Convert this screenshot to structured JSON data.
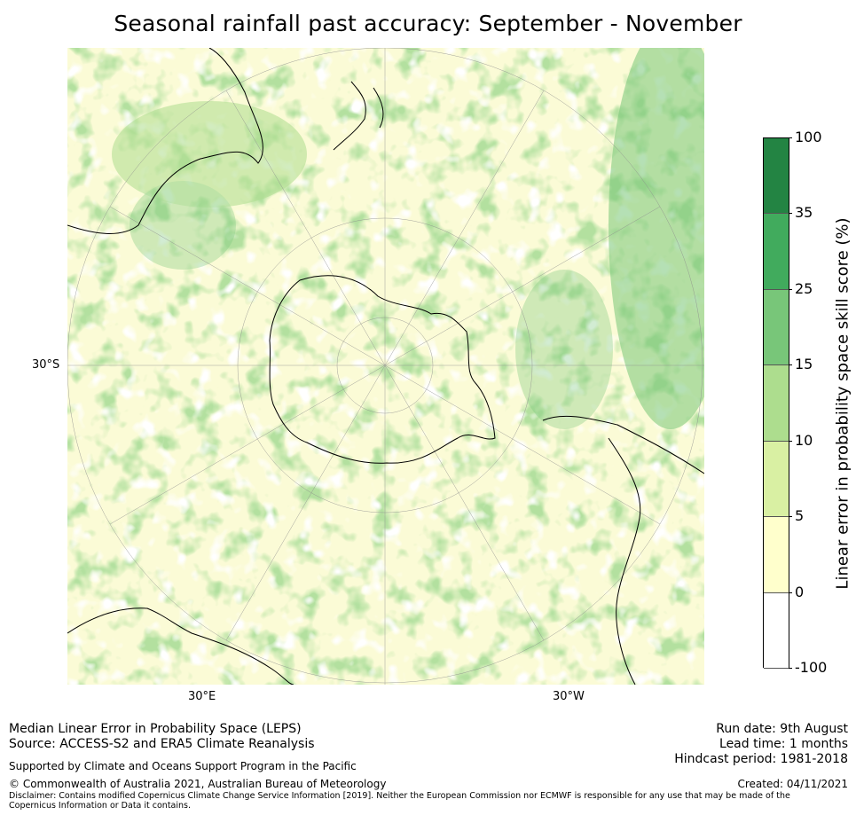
{
  "title": "Seasonal rainfall past accuracy: September - November",
  "map": {
    "projection": "south-polar stereographic",
    "background_color": "#fffdd0",
    "lat_label": "30°S",
    "lon_labels": [
      "30°E",
      "30°W"
    ],
    "land_outline_color": "#000000",
    "grid_color": "#999999"
  },
  "colorbar": {
    "label": "Linear error in probability space skill score (%)",
    "ticks": [
      "-100",
      "0",
      "5",
      "10",
      "15",
      "25",
      "35",
      "100"
    ],
    "bins": [
      {
        "from": -100,
        "to": 0,
        "color": "#ffffff"
      },
      {
        "from": 0,
        "to": 5,
        "color": "#ffffcc"
      },
      {
        "from": 5,
        "to": 10,
        "color": "#d9f0a3"
      },
      {
        "from": 10,
        "to": 15,
        "color": "#addd8e"
      },
      {
        "from": 15,
        "to": 25,
        "color": "#78c679"
      },
      {
        "from": 25,
        "to": 35,
        "color": "#41ab5d"
      },
      {
        "from": 35,
        "to": 100,
        "color": "#238443"
      }
    ]
  },
  "footer": {
    "left_line1": "Median Linear Error in Probability Space (LEPS)",
    "left_line2": "Source: ACCESS-S2 and ERA5 Climate Reanalysis",
    "support": "Supported by Climate and Oceans Support Program in the Pacific",
    "copyright": "© Commonwealth of Australia 2021, Australian Bureau of Meteorology",
    "disclaimer": "Disclaimer: Contains modified Copernicus Climate Change Service Information [2019]. Neither the European Commission nor ECMWF is responsible for any use that may be made of the Copernicus Information or Data it contains.",
    "run_date": "Run date: 9th August",
    "lead_time": "Lead time: 1 months",
    "hindcast": "Hindcast period: 1981-2018",
    "created": "Created: 04/11/2021"
  }
}
